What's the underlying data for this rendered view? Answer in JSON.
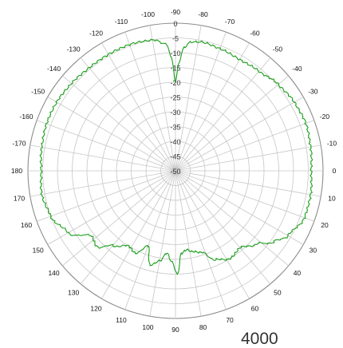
{
  "chart_data": {
    "type": "polar_line",
    "title": "",
    "angular_axis": {
      "rotation_note": "90 at top, 0 and 180 on horizontal axis, -90 top, 90 bottom",
      "tick_labels": [
        "-90",
        "-80",
        "-70",
        "-60",
        "-50",
        "-40",
        "-30",
        "-20",
        "-10",
        "0",
        "10",
        "20",
        "30",
        "40",
        "50",
        "60",
        "70",
        "80",
        "90",
        "100",
        "110",
        "120",
        "130",
        "140",
        "150",
        "160",
        "170",
        "180",
        "-170",
        "-160",
        "-150",
        "-140",
        "-130",
        "-120",
        "-110",
        "-100"
      ]
    },
    "radial_axis": {
      "range": [
        -50,
        0
      ],
      "tick_labels": [
        "0",
        "-5",
        "-10",
        "-15",
        "-20",
        "-25",
        "-30",
        "-35",
        "-40",
        "-45",
        "-50"
      ]
    },
    "grid": true,
    "series": [
      {
        "color": "#1a9e1a",
        "points": [
          {
            "angle": -90,
            "value": -20
          },
          {
            "angle": -88,
            "value": -13
          },
          {
            "angle": -86,
            "value": -8
          },
          {
            "angle": -83,
            "value": -6
          },
          {
            "angle": -78,
            "value": -5.5
          },
          {
            "angle": -70,
            "value": -6
          },
          {
            "angle": -60,
            "value": -6.5
          },
          {
            "angle": -50,
            "value": -6
          },
          {
            "angle": -40,
            "value": -4.5
          },
          {
            "angle": -30,
            "value": -3.5
          },
          {
            "angle": -20,
            "value": -3
          },
          {
            "angle": -10,
            "value": -3.5
          },
          {
            "angle": 0,
            "value": -4
          },
          {
            "angle": 10,
            "value": -3.5
          },
          {
            "angle": 20,
            "value": -3.5
          },
          {
            "angle": 30,
            "value": -6
          },
          {
            "angle": 36,
            "value": -9
          },
          {
            "angle": 42,
            "value": -13
          },
          {
            "angle": 50,
            "value": -16
          },
          {
            "angle": 58,
            "value": -15
          },
          {
            "angle": 66,
            "value": -17
          },
          {
            "angle": 72,
            "value": -21
          },
          {
            "angle": 78,
            "value": -22
          },
          {
            "angle": 82,
            "value": -23
          },
          {
            "angle": 86,
            "value": -22
          },
          {
            "angle": 89,
            "value": -15
          },
          {
            "angle": 92,
            "value": -19
          },
          {
            "angle": 96,
            "value": -22
          },
          {
            "angle": 100,
            "value": -19
          },
          {
            "angle": 105,
            "value": -17
          },
          {
            "angle": 110,
            "value": -23
          },
          {
            "angle": 116,
            "value": -19
          },
          {
            "angle": 122,
            "value": -20
          },
          {
            "angle": 130,
            "value": -17
          },
          {
            "angle": 136,
            "value": -13
          },
          {
            "angle": 142,
            "value": -14
          },
          {
            "angle": 150,
            "value": -8
          },
          {
            "angle": 160,
            "value": -5
          },
          {
            "angle": 170,
            "value": -4
          },
          {
            "angle": 180,
            "value": -4.5
          },
          {
            "angle": -170,
            "value": -4
          },
          {
            "angle": -160,
            "value": -3.5
          },
          {
            "angle": -150,
            "value": -3.5
          },
          {
            "angle": -140,
            "value": -4
          },
          {
            "angle": -130,
            "value": -4.5
          },
          {
            "angle": -120,
            "value": -4.5
          },
          {
            "angle": -110,
            "value": -4.5
          },
          {
            "angle": -100,
            "value": -5
          },
          {
            "angle": -94,
            "value": -7
          },
          {
            "angle": -92,
            "value": -12
          },
          {
            "angle": -90,
            "value": -20
          }
        ]
      }
    ]
  },
  "corner_label": "4000"
}
